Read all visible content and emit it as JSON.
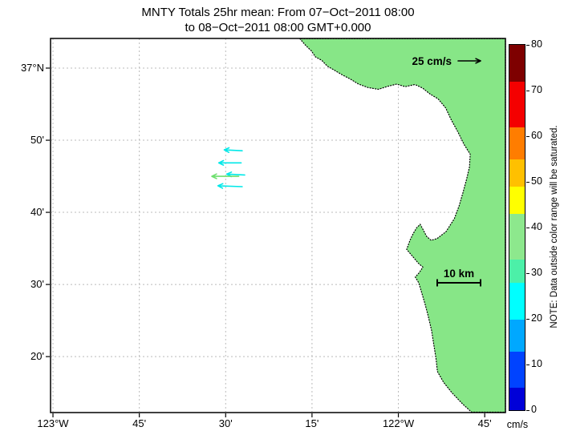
{
  "figure": {
    "title_line1": "MNTY Totals 25hr mean: From 07−Oct−2011 08:00",
    "title_line2": "to 08−Oct−2011 08:00 GMT+0.000"
  },
  "colorbar": {
    "unit_label": "cm/s",
    "note": "NOTE: Data outside color range will be saturated.",
    "max": 80,
    "ticks": [
      0,
      10,
      20,
      30,
      40,
      50,
      60,
      70,
      80
    ],
    "bands": [
      {
        "from": 0,
        "to": 5,
        "color": "#0000D8"
      },
      {
        "from": 5,
        "to": 13,
        "color": "#0043FF"
      },
      {
        "from": 13,
        "to": 20,
        "color": "#00A8FF"
      },
      {
        "from": 20,
        "to": 28,
        "color": "#00FFFF"
      },
      {
        "from": 28,
        "to": 33,
        "color": "#4CF0A8"
      },
      {
        "from": 33,
        "to": 43,
        "color": "#8DE88D"
      },
      {
        "from": 43,
        "to": 49,
        "color": "#FFFF00"
      },
      {
        "from": 49,
        "to": 55,
        "color": "#FFC000"
      },
      {
        "from": 55,
        "to": 62,
        "color": "#FF7D00"
      },
      {
        "from": 62,
        "to": 72,
        "color": "#F40000"
      },
      {
        "from": 72,
        "to": 80,
        "color": "#7E0000"
      }
    ]
  },
  "chart_data": {
    "type": "scatter",
    "subtype": "vector-field-map",
    "title": "MNTY Totals 25hr mean: From 07−Oct−2011 08:00 to 08−Oct−2011 08:00 GMT+0.000",
    "axes": {
      "lon_min": -123.007,
      "lon_max": -121.69,
      "lat_min": 36.204,
      "lat_max": 37.0685,
      "grid": "dashed",
      "x_ticks": [
        {
          "label": "123°W",
          "lon": -123.0
        },
        {
          "label": "45'",
          "lon": -122.75
        },
        {
          "label": "30'",
          "lon": -122.5
        },
        {
          "label": "15'",
          "lon": -122.25
        },
        {
          "label": "122°W",
          "lon": -122.0
        },
        {
          "label": "45'",
          "lon": -121.75
        }
      ],
      "y_ticks": [
        {
          "label": "37°N",
          "lat": 37.0
        },
        {
          "label": "50'",
          "lat": 36.8333
        },
        {
          "label": "40'",
          "lat": 36.6667
        },
        {
          "label": "30'",
          "lat": 36.5
        },
        {
          "label": "20'",
          "lat": 36.3333
        }
      ]
    },
    "scale_arrow": {
      "label": "25 cm/s",
      "value_cms": 25
    },
    "scale_bar": {
      "label": "10 km",
      "value_km": 10
    },
    "vectors": {
      "units": "cm/s",
      "points": [
        {
          "lon": -122.452,
          "lat": 36.809,
          "u": -20,
          "v": 1,
          "color": "#00E8E8"
        },
        {
          "lon": -122.455,
          "lat": 36.781,
          "u": -25,
          "v": 0,
          "color": "#00E8E8"
        },
        {
          "lon": -122.445,
          "lat": 36.753,
          "u": -20,
          "v": 1,
          "color": "#00E8E8"
        },
        {
          "lon": -122.462,
          "lat": 36.75,
          "u": -30,
          "v": 0,
          "color": "#6FDF6F"
        },
        {
          "lon": -122.452,
          "lat": 36.726,
          "u": -27,
          "v": 1,
          "color": "#00E8E8"
        }
      ]
    },
    "land": {
      "color": "#87E687",
      "outline": "#000000",
      "coastline": [
        [
          -122.285,
          37.068
        ],
        [
          -122.268,
          37.052
        ],
        [
          -122.252,
          37.04
        ],
        [
          -122.24,
          37.026
        ],
        [
          -122.222,
          37.018
        ],
        [
          -122.205,
          37.004
        ],
        [
          -122.185,
          36.995
        ],
        [
          -122.162,
          36.984
        ],
        [
          -122.14,
          36.975
        ],
        [
          -122.115,
          36.963
        ],
        [
          -122.088,
          36.955
        ],
        [
          -122.058,
          36.951
        ],
        [
          -122.03,
          36.958
        ],
        [
          -122.005,
          36.963
        ],
        [
          -121.98,
          36.957
        ],
        [
          -121.952,
          36.962
        ],
        [
          -121.93,
          36.954
        ],
        [
          -121.908,
          36.94
        ],
        [
          -121.885,
          36.929
        ],
        [
          -121.863,
          36.908
        ],
        [
          -121.848,
          36.882
        ],
        [
          -121.828,
          36.853
        ],
        [
          -121.81,
          36.824
        ],
        [
          -121.792,
          36.801
        ],
        [
          -121.794,
          36.772
        ],
        [
          -121.803,
          36.742
        ],
        [
          -121.813,
          36.712
        ],
        [
          -121.824,
          36.682
        ],
        [
          -121.838,
          36.652
        ],
        [
          -121.862,
          36.622
        ],
        [
          -121.888,
          36.606
        ],
        [
          -121.905,
          36.602
        ],
        [
          -121.918,
          36.611
        ],
        [
          -121.93,
          36.629
        ],
        [
          -121.937,
          36.639
        ],
        [
          -121.947,
          36.631
        ],
        [
          -121.957,
          36.618
        ],
        [
          -121.966,
          36.603
        ],
        [
          -121.976,
          36.581
        ],
        [
          -121.96,
          36.566
        ],
        [
          -121.942,
          36.549
        ],
        [
          -121.929,
          36.54
        ],
        [
          -121.94,
          36.527
        ],
        [
          -121.951,
          36.517
        ],
        [
          -121.941,
          36.504
        ],
        [
          -121.935,
          36.488
        ],
        [
          -121.924,
          36.458
        ],
        [
          -121.914,
          36.428
        ],
        [
          -121.904,
          36.394
        ],
        [
          -121.897,
          36.359
        ],
        [
          -121.891,
          36.328
        ],
        [
          -121.887,
          36.299
        ],
        [
          -121.869,
          36.274
        ],
        [
          -121.844,
          36.249
        ],
        [
          -121.814,
          36.224
        ],
        [
          -121.788,
          36.205
        ],
        [
          -121.69,
          36.205
        ],
        [
          -121.69,
          37.068
        ]
      ]
    }
  }
}
